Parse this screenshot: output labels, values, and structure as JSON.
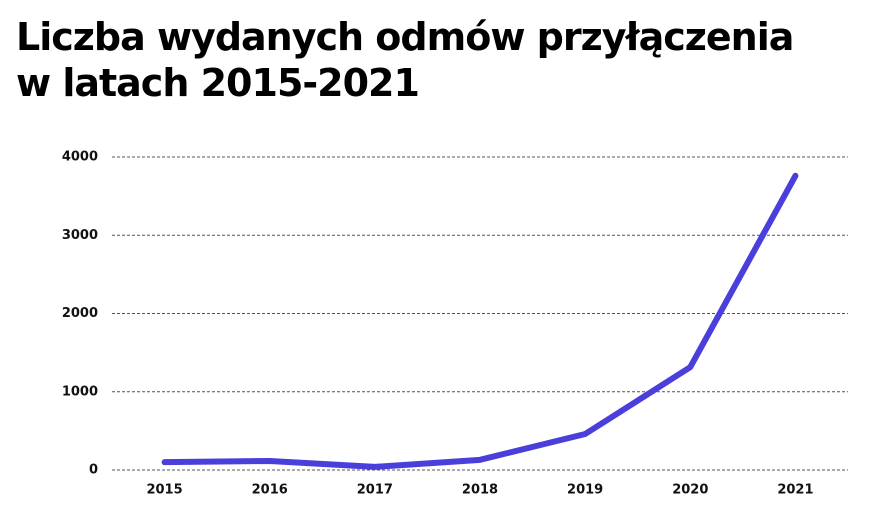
{
  "chart_data": {
    "type": "line",
    "title": "Liczba wydanych odmów przyłączenia\nw latach 2015-2021",
    "categories": [
      "2015",
      "2016",
      "2017",
      "2018",
      "2019",
      "2020",
      "2021"
    ],
    "values": [
      100,
      115,
      40,
      130,
      460,
      1315,
      3760
    ],
    "color": "#4b3fdb",
    "ylim": [
      0,
      4000
    ],
    "yticks": [
      0,
      1000,
      2000,
      3000,
      4000
    ],
    "grid": true
  }
}
